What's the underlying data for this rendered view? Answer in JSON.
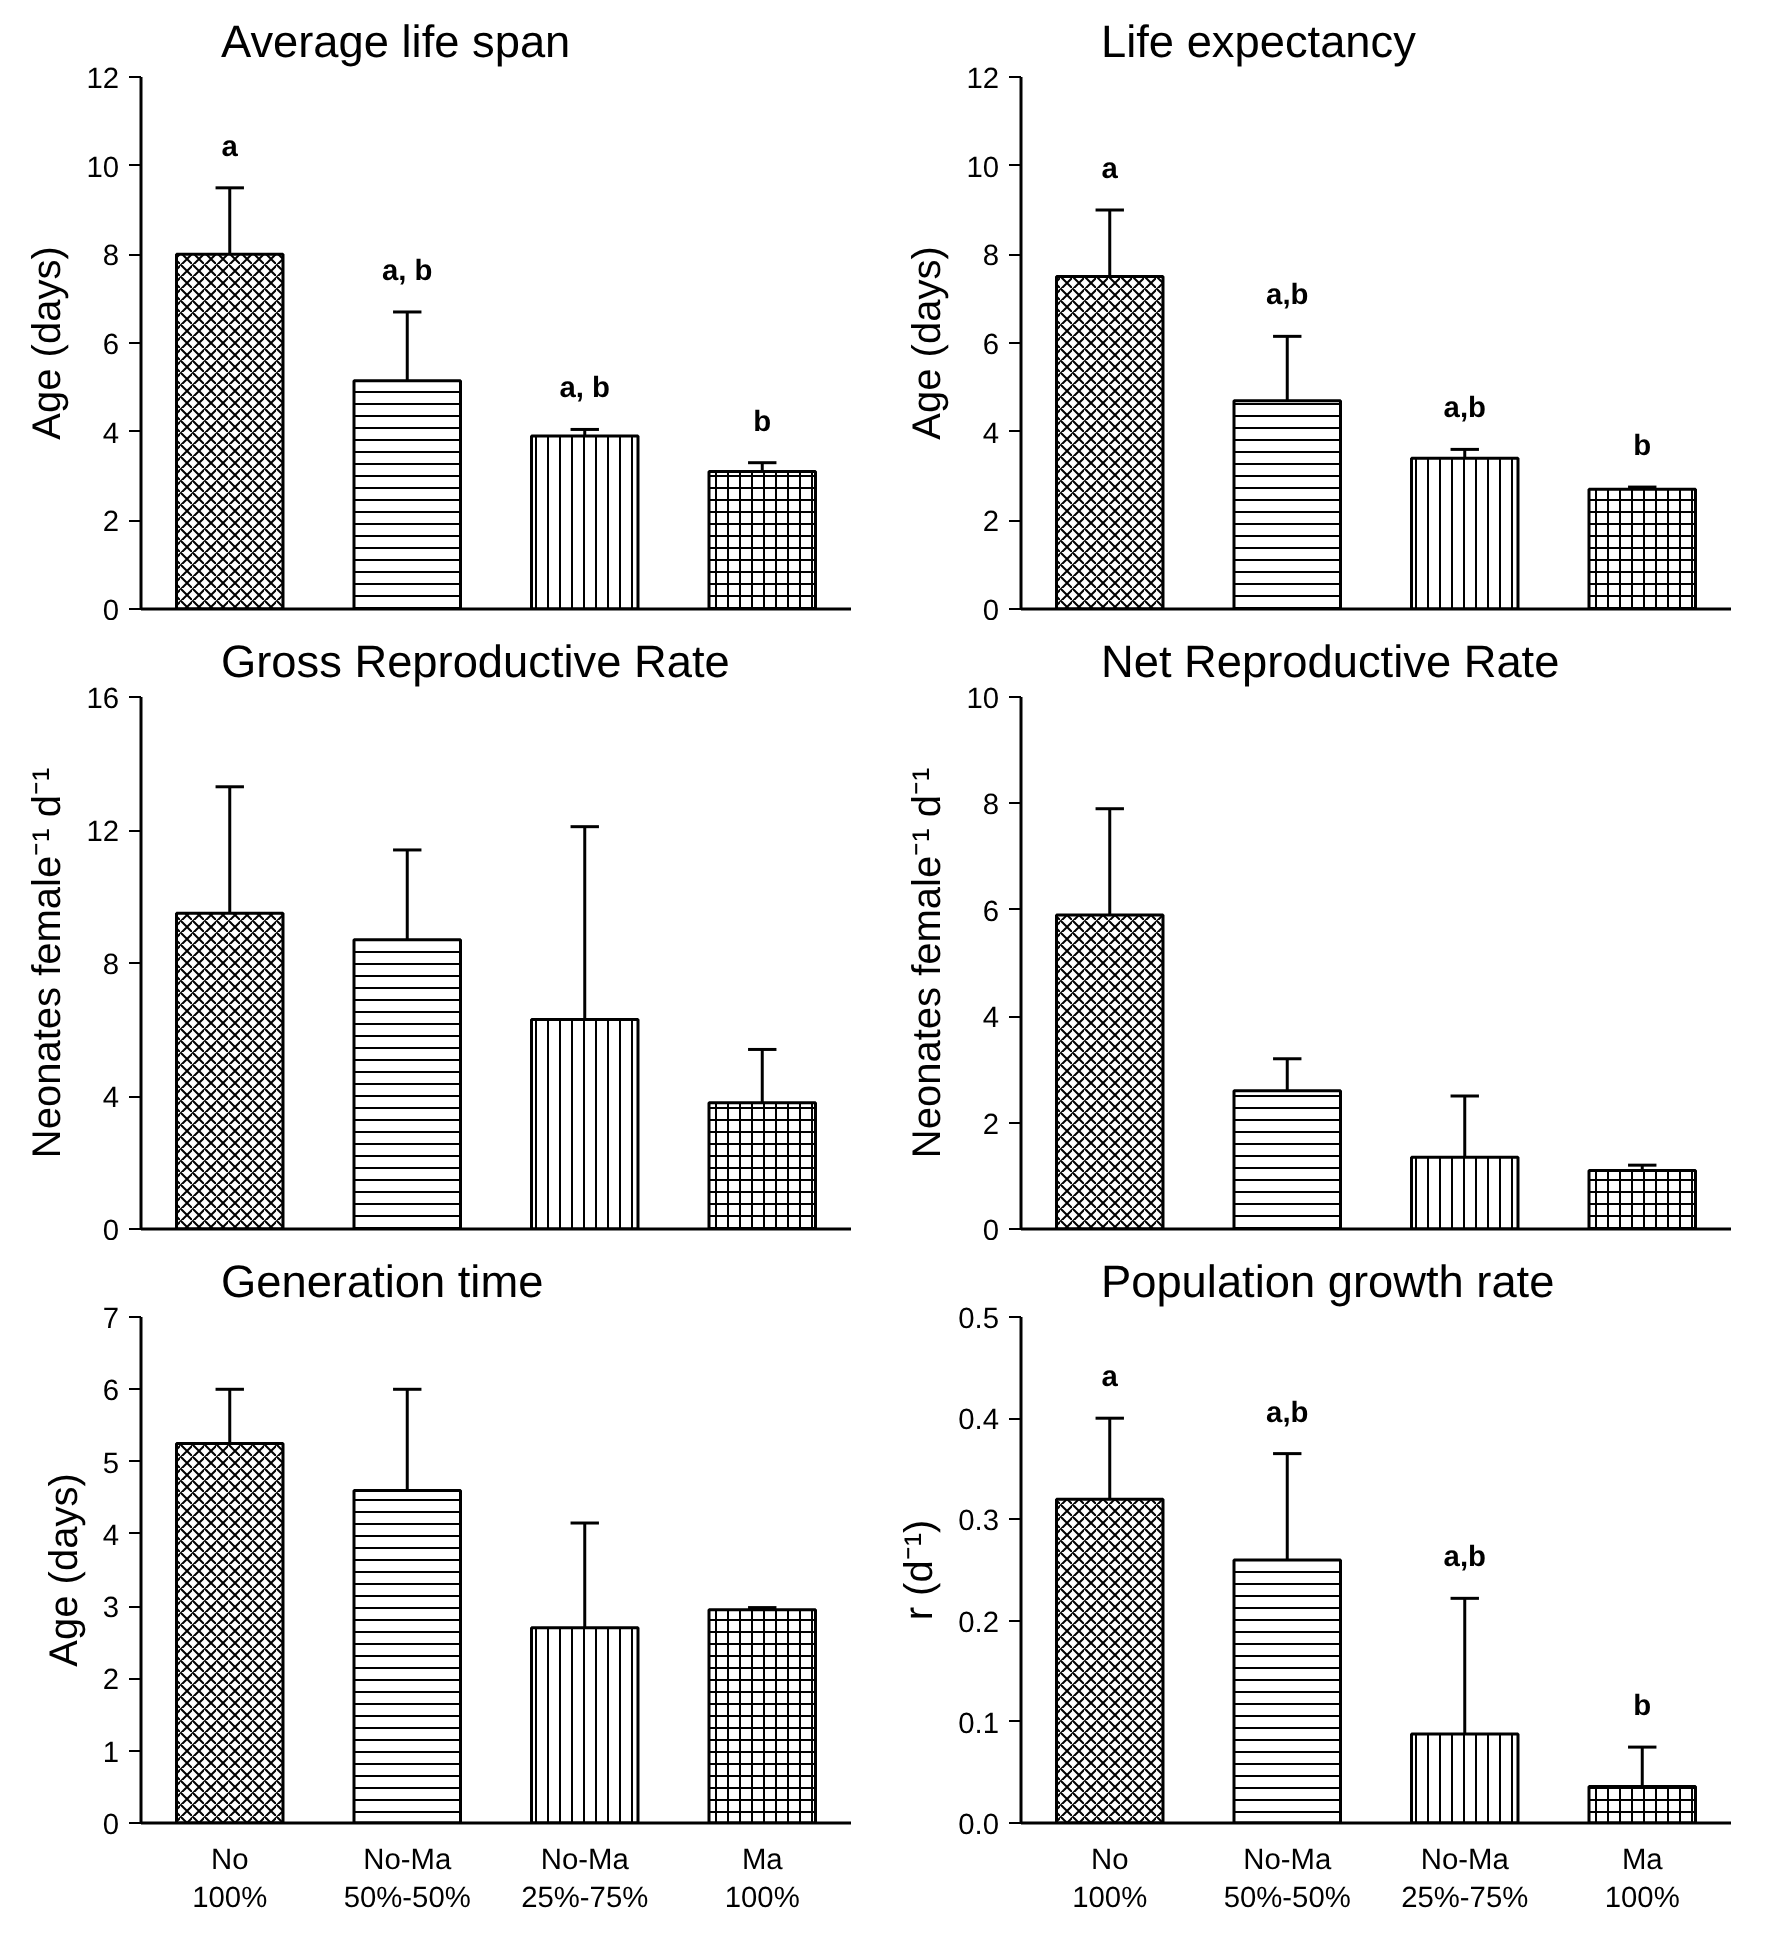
{
  "chart_data": [
    {
      "type": "bar",
      "title": "Average life span",
      "ylabel": "Age (days)",
      "categories": [
        null,
        null,
        null,
        null
      ],
      "values": [
        8.0,
        5.15,
        3.9,
        3.1
      ],
      "errors": [
        [
          8.0,
          9.5
        ],
        [
          5.15,
          6.7
        ],
        [
          3.9,
          4.05
        ],
        [
          3.1,
          3.3
        ]
      ],
      "ylim": [
        0,
        12
      ],
      "yticks": [
        0,
        2,
        4,
        6,
        8,
        10,
        12
      ],
      "annotations": [
        "a",
        "a, b",
        "a, b",
        "b"
      ]
    },
    {
      "type": "bar",
      "title": "Life expectancy",
      "ylabel": "Age (days)",
      "categories": [
        null,
        null,
        null,
        null
      ],
      "values": [
        7.5,
        4.7,
        3.4,
        2.7
      ],
      "errors": [
        [
          7.5,
          9.0
        ],
        [
          4.7,
          6.15
        ],
        [
          3.4,
          3.6
        ],
        [
          2.7,
          2.75
        ]
      ],
      "ylim": [
        0,
        12
      ],
      "yticks": [
        0,
        2,
        4,
        6,
        8,
        10,
        12
      ],
      "annotations": [
        "a",
        "a,b",
        "a,b",
        "b"
      ]
    },
    {
      "type": "bar",
      "title": "Gross Reproductive Rate",
      "ylabel": "Neonates female⁻¹ d⁻¹",
      "categories": [
        null,
        null,
        null,
        null
      ],
      "values": [
        9.5,
        8.7,
        6.3,
        3.8
      ],
      "errors": [
        [
          9.5,
          13.3
        ],
        [
          8.7,
          11.4
        ],
        [
          6.3,
          12.1
        ],
        [
          3.8,
          5.4
        ]
      ],
      "ylim": [
        0,
        16
      ],
      "yticks": [
        0,
        4,
        8,
        12,
        16
      ]
    },
    {
      "type": "bar",
      "title": "Net Reproductive Rate",
      "ylabel": "Neonates female⁻¹ d⁻¹",
      "categories": [
        null,
        null,
        null,
        null
      ],
      "values": [
        5.9,
        2.6,
        1.35,
        1.1
      ],
      "errors": [
        [
          5.9,
          7.9
        ],
        [
          2.6,
          3.2
        ],
        [
          1.35,
          2.5
        ],
        [
          1.1,
          1.2
        ]
      ],
      "ylim": [
        0,
        10
      ],
      "yticks": [
        0,
        2,
        4,
        6,
        8,
        10
      ]
    },
    {
      "type": "bar",
      "title": "Generation time",
      "ylabel": "Age (days)",
      "categories": [
        "No\n100%",
        "No-Ma\n50%-50%",
        "No-Ma\n25%-75%",
        "Ma\n100%"
      ],
      "values": [
        5.25,
        4.6,
        2.7,
        2.95
      ],
      "errors": [
        [
          5.25,
          6.0
        ],
        [
          4.6,
          6.0
        ],
        [
          2.7,
          4.15
        ],
        [
          2.95,
          2.98
        ]
      ],
      "ylim": [
        0,
        7
      ],
      "yticks": [
        0,
        1,
        2,
        3,
        4,
        5,
        6,
        7
      ]
    },
    {
      "type": "bar",
      "title": "Population growth rate",
      "ylabel": "r (d⁻¹)",
      "categories": [
        "No\n100%",
        "No-Ma\n50%-50%",
        "No-Ma\n25%-75%",
        "Ma\n100%"
      ],
      "values": [
        0.32,
        0.26,
        0.088,
        0.036
      ],
      "errors": [
        [
          0.32,
          0.4
        ],
        [
          0.26,
          0.365
        ],
        [
          0.088,
          0.222
        ],
        [
          0.036,
          0.075
        ]
      ],
      "ylim": [
        0,
        0.5
      ],
      "yticks": [
        {
          "value": 0,
          "label": "0.0"
        },
        0.1,
        0.2,
        0.3,
        0.4,
        0.5
      ],
      "annotations": [
        "a",
        "a,b",
        "a,b",
        "b"
      ]
    }
  ]
}
